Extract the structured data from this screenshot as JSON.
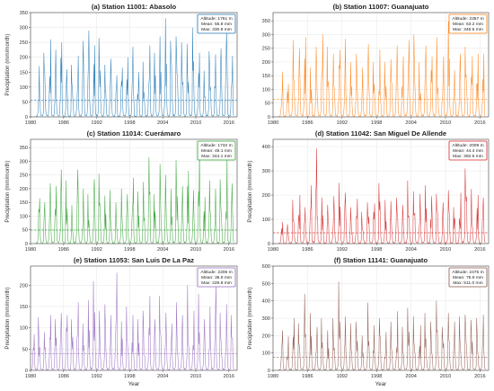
{
  "figure": {
    "xlabel": "Year",
    "ylabel": "Precipitation (mm/month)"
  },
  "chart_data": [
    {
      "type": "line",
      "title": "(a) Station 11001: Abasolo",
      "xlabel": "",
      "ylabel": "Precipitation (mm/month)",
      "color": "#1f77b4",
      "xlim": [
        1980,
        2017.5
      ],
      "ylim": [
        0,
        350
      ],
      "yticks": [
        0,
        50,
        100,
        150,
        200,
        250,
        300,
        350
      ],
      "xticks": [
        1980,
        1986,
        1992,
        1998,
        2004,
        2010,
        2016
      ],
      "x_start": 1981.0,
      "x_end": 2016.95,
      "mean_line": 55.8,
      "annual_peaks": [
        {
          "x": 1981,
          "y": 170
        },
        {
          "x": 1982,
          "y": 215
        },
        {
          "x": 1983,
          "y": 260
        },
        {
          "x": 1984,
          "y": 225
        },
        {
          "x": 1985,
          "y": 250
        },
        {
          "x": 1986,
          "y": 160
        },
        {
          "x": 1987,
          "y": 175
        },
        {
          "x": 1988,
          "y": 205
        },
        {
          "x": 1989,
          "y": 255
        },
        {
          "x": 1990,
          "y": 290
        },
        {
          "x": 1991,
          "y": 240
        },
        {
          "x": 1992,
          "y": 265
        },
        {
          "x": 1993,
          "y": 175
        },
        {
          "x": 1994,
          "y": 195
        },
        {
          "x": 1995,
          "y": 140
        },
        {
          "x": 1996,
          "y": 165
        },
        {
          "x": 1997,
          "y": 200
        },
        {
          "x": 1998,
          "y": 235
        },
        {
          "x": 1999,
          "y": 150
        },
        {
          "x": 2000,
          "y": 185
        },
        {
          "x": 2001,
          "y": 240
        },
        {
          "x": 2002,
          "y": 215
        },
        {
          "x": 2003,
          "y": 270
        },
        {
          "x": 2004,
          "y": 330.8
        },
        {
          "x": 2005,
          "y": 255
        },
        {
          "x": 2006,
          "y": 270
        },
        {
          "x": 2007,
          "y": 250
        },
        {
          "x": 2008,
          "y": 245
        },
        {
          "x": 2009,
          "y": 300
        },
        {
          "x": 2010,
          "y": 215
        },
        {
          "x": 2011,
          "y": 155
        },
        {
          "x": 2012,
          "y": 220
        },
        {
          "x": 2013,
          "y": 210
        },
        {
          "x": 2014,
          "y": 230
        },
        {
          "x": 2015,
          "y": 290
        },
        {
          "x": 2016,
          "y": 205
        }
      ],
      "stats": {
        "altitude": "Altitude: 1761 m",
        "mean": "Mean: 55.8 mm",
        "max": "Max: 330.8 mm"
      }
    },
    {
      "type": "line",
      "title": "(b) Station 11007: Guanajuato",
      "xlabel": "",
      "ylabel": "",
      "color": "#ff7f0e",
      "xlim": [
        1980,
        2017.5
      ],
      "ylim": [
        0,
        380
      ],
      "yticks": [
        0,
        50,
        100,
        150,
        200,
        250,
        300,
        350
      ],
      "xticks": [
        1980,
        1986,
        1992,
        1998,
        2004,
        2010,
        2016
      ],
      "x_start": 1981.0,
      "x_end": 2016.95,
      "mean_line": 63.2,
      "annual_peaks": [
        {
          "x": 1981,
          "y": 165
        },
        {
          "x": 1982,
          "y": 120
        },
        {
          "x": 1983,
          "y": 280
        },
        {
          "x": 1984,
          "y": 250
        },
        {
          "x": 1985,
          "y": 290
        },
        {
          "x": 1986,
          "y": 180
        },
        {
          "x": 1987,
          "y": 255
        },
        {
          "x": 1988,
          "y": 300
        },
        {
          "x": 1989,
          "y": 255
        },
        {
          "x": 1990,
          "y": 230
        },
        {
          "x": 1991,
          "y": 245
        },
        {
          "x": 1992,
          "y": 285
        },
        {
          "x": 1993,
          "y": 200
        },
        {
          "x": 1994,
          "y": 230
        },
        {
          "x": 1995,
          "y": 180
        },
        {
          "x": 1996,
          "y": 265
        },
        {
          "x": 1997,
          "y": 200
        },
        {
          "x": 1998,
          "y": 245
        },
        {
          "x": 1999,
          "y": 200
        },
        {
          "x": 2000,
          "y": 210
        },
        {
          "x": 2001,
          "y": 260
        },
        {
          "x": 2002,
          "y": 220
        },
        {
          "x": 2003,
          "y": 280
        },
        {
          "x": 2004,
          "y": 300
        },
        {
          "x": 2005,
          "y": 200
        },
        {
          "x": 2006,
          "y": 260
        },
        {
          "x": 2007,
          "y": 220
        },
        {
          "x": 2008,
          "y": 290
        },
        {
          "x": 2009,
          "y": 220
        },
        {
          "x": 2010,
          "y": 348.5
        },
        {
          "x": 2011,
          "y": 170
        },
        {
          "x": 2012,
          "y": 230
        },
        {
          "x": 2013,
          "y": 255
        },
        {
          "x": 2014,
          "y": 220
        },
        {
          "x": 2015,
          "y": 230
        },
        {
          "x": 2016,
          "y": 230
        }
      ],
      "stats": {
        "altitude": "Altitude: 2357 m",
        "mean": "Mean: 63.2 mm",
        "max": "Max: 348.5 mm"
      }
    },
    {
      "type": "line",
      "title": "(c) Station 11014: Cuerámaro",
      "xlabel": "",
      "ylabel": "Precipitation (mm/month)",
      "color": "#2ca02c",
      "xlim": [
        1980,
        2017.5
      ],
      "ylim": [
        0,
        380
      ],
      "yticks": [
        0,
        50,
        100,
        150,
        200,
        250,
        300,
        350
      ],
      "xticks": [
        1980,
        1986,
        1992,
        1998,
        2004,
        2010,
        2016
      ],
      "x_start": 1981.0,
      "x_end": 2016.95,
      "mean_line": 49.1,
      "annual_peaks": [
        {
          "x": 1981,
          "y": 165
        },
        {
          "x": 1982,
          "y": 150
        },
        {
          "x": 1983,
          "y": 220
        },
        {
          "x": 1984,
          "y": 210
        },
        {
          "x": 1985,
          "y": 270
        },
        {
          "x": 1986,
          "y": 230
        },
        {
          "x": 1987,
          "y": 140
        },
        {
          "x": 1988,
          "y": 270
        },
        {
          "x": 1989,
          "y": 200
        },
        {
          "x": 1990,
          "y": 180
        },
        {
          "x": 1991,
          "y": 235
        },
        {
          "x": 1992,
          "y": 255
        },
        {
          "x": 1993,
          "y": 175
        },
        {
          "x": 1994,
          "y": 195
        },
        {
          "x": 1995,
          "y": 150
        },
        {
          "x": 1996,
          "y": 200
        },
        {
          "x": 1997,
          "y": 180
        },
        {
          "x": 1998,
          "y": 240
        },
        {
          "x": 1999,
          "y": 190
        },
        {
          "x": 2000,
          "y": 225
        },
        {
          "x": 2001,
          "y": 315
        },
        {
          "x": 2002,
          "y": 180
        },
        {
          "x": 2003,
          "y": 290
        },
        {
          "x": 2004,
          "y": 250
        },
        {
          "x": 2005,
          "y": 200
        },
        {
          "x": 2006,
          "y": 305
        },
        {
          "x": 2007,
          "y": 210
        },
        {
          "x": 2008,
          "y": 265
        },
        {
          "x": 2009,
          "y": 195
        },
        {
          "x": 2010,
          "y": 344.1
        },
        {
          "x": 2011,
          "y": 170
        },
        {
          "x": 2012,
          "y": 230
        },
        {
          "x": 2013,
          "y": 200
        },
        {
          "x": 2014,
          "y": 235
        },
        {
          "x": 2015,
          "y": 315
        },
        {
          "x": 2016,
          "y": 220
        }
      ],
      "stats": {
        "altitude": "Altitude: 1732 m",
        "mean": "Mean: 49.1 mm",
        "max": "Max: 344.1 mm"
      }
    },
    {
      "type": "line",
      "title": "(d) Station 11042: San Miguel De Allende",
      "xlabel": "",
      "ylabel": "Precipitation (mm/month)",
      "color": "#d62728",
      "xlim": [
        1980,
        2017.5
      ],
      "ylim": [
        0,
        430
      ],
      "yticks": [
        0,
        100,
        200,
        300,
        400
      ],
      "xticks": [
        1980,
        1986,
        1992,
        1998,
        2004,
        2010,
        2016
      ],
      "x_start": 1981.0,
      "x_end": 2016.95,
      "mean_line": 44.4,
      "annual_peaks": [
        {
          "x": 1981,
          "y": 90
        },
        {
          "x": 1982,
          "y": 80
        },
        {
          "x": 1983,
          "y": 180
        },
        {
          "x": 1984,
          "y": 200
        },
        {
          "x": 1985,
          "y": 150
        },
        {
          "x": 1986,
          "y": 240
        },
        {
          "x": 1987,
          "y": 392.5
        },
        {
          "x": 1988,
          "y": 190
        },
        {
          "x": 1989,
          "y": 160
        },
        {
          "x": 1990,
          "y": 195
        },
        {
          "x": 1991,
          "y": 250
        },
        {
          "x": 1992,
          "y": 210
        },
        {
          "x": 1993,
          "y": 150
        },
        {
          "x": 1994,
          "y": 185
        },
        {
          "x": 1995,
          "y": 130
        },
        {
          "x": 1996,
          "y": 170
        },
        {
          "x": 1997,
          "y": 165
        },
        {
          "x": 1998,
          "y": 250
        },
        {
          "x": 1999,
          "y": 180
        },
        {
          "x": 2000,
          "y": 175
        },
        {
          "x": 2001,
          "y": 190
        },
        {
          "x": 2002,
          "y": 160
        },
        {
          "x": 2003,
          "y": 260
        },
        {
          "x": 2004,
          "y": 215
        },
        {
          "x": 2005,
          "y": 205
        },
        {
          "x": 2006,
          "y": 240
        },
        {
          "x": 2007,
          "y": 195
        },
        {
          "x": 2008,
          "y": 205
        },
        {
          "x": 2009,
          "y": 170
        },
        {
          "x": 2010,
          "y": 220
        },
        {
          "x": 2011,
          "y": 150
        },
        {
          "x": 2012,
          "y": 210
        },
        {
          "x": 2013,
          "y": 310
        },
        {
          "x": 2014,
          "y": 225
        },
        {
          "x": 2015,
          "y": 200
        },
        {
          "x": 2016,
          "y": 190
        }
      ],
      "stats": {
        "altitude": "Altitude: 2009 m",
        "mean": "Mean: 44.4 mm",
        "max": "Max: 392.5 mm"
      }
    },
    {
      "type": "line",
      "title": "(e) Station 11053: San Luis De La Paz",
      "xlabel": "Year",
      "ylabel": "Precipitation (mm/month)",
      "color": "#9467bd",
      "xlim": [
        1980,
        2017.5
      ],
      "ylim": [
        0,
        245
      ],
      "yticks": [
        0,
        50,
        100,
        150,
        200
      ],
      "xticks": [
        1980,
        1986,
        1992,
        1998,
        2004,
        2010,
        2016
      ],
      "x_start": 1980.0,
      "x_end": 2016.95,
      "mean_line": 38.9,
      "annual_peaks": [
        {
          "x": 1980,
          "y": 85
        },
        {
          "x": 1981,
          "y": 125
        },
        {
          "x": 1982,
          "y": 90
        },
        {
          "x": 1983,
          "y": 130
        },
        {
          "x": 1984,
          "y": 120
        },
        {
          "x": 1985,
          "y": 135
        },
        {
          "x": 1986,
          "y": 130
        },
        {
          "x": 1987,
          "y": 120
        },
        {
          "x": 1988,
          "y": 160
        },
        {
          "x": 1989,
          "y": 110
        },
        {
          "x": 1990,
          "y": 165
        },
        {
          "x": 1991,
          "y": 210
        },
        {
          "x": 1992,
          "y": 140
        },
        {
          "x": 1993,
          "y": 155
        },
        {
          "x": 1994,
          "y": 130
        },
        {
          "x": 1995,
          "y": 229.8
        },
        {
          "x": 1996,
          "y": 115
        },
        {
          "x": 1997,
          "y": 150
        },
        {
          "x": 1998,
          "y": 130
        },
        {
          "x": 1999,
          "y": 120
        },
        {
          "x": 2000,
          "y": 140
        },
        {
          "x": 2001,
          "y": 175
        },
        {
          "x": 2002,
          "y": 120
        },
        {
          "x": 2003,
          "y": 175
        },
        {
          "x": 2004,
          "y": 135
        },
        {
          "x": 2005,
          "y": 110
        },
        {
          "x": 2006,
          "y": 160
        },
        {
          "x": 2007,
          "y": 130
        },
        {
          "x": 2008,
          "y": 200
        },
        {
          "x": 2009,
          "y": 140
        },
        {
          "x": 2010,
          "y": 180
        },
        {
          "x": 2011,
          "y": 120
        },
        {
          "x": 2012,
          "y": 150
        },
        {
          "x": 2013,
          "y": 205
        },
        {
          "x": 2014,
          "y": 135
        },
        {
          "x": 2015,
          "y": 155
        },
        {
          "x": 2016,
          "y": 130
        }
      ],
      "stats": {
        "altitude": "Altitude: 2206 m",
        "mean": "Mean: 38.9 mm",
        "max": "Max: 229.8 mm"
      }
    },
    {
      "type": "line",
      "title": "(f) Station 11141: Guanajuato",
      "xlabel": "Year",
      "ylabel": "Precipitation (mm/month)",
      "color": "#8c564b",
      "xlim": [
        1980,
        2017.5
      ],
      "ylim": [
        0,
        600
      ],
      "yticks": [
        0,
        100,
        200,
        300,
        400,
        500,
        600
      ],
      "xticks": [
        1980,
        1986,
        1992,
        1998,
        2004,
        2010,
        2016
      ],
      "x_start": 1981.0,
      "x_end": 2016.95,
      "mean_line": 75.9,
      "annual_peaks": [
        {
          "x": 1981,
          "y": 230
        },
        {
          "x": 1982,
          "y": 195
        },
        {
          "x": 1983,
          "y": 300
        },
        {
          "x": 1984,
          "y": 270
        },
        {
          "x": 1985,
          "y": 440
        },
        {
          "x": 1986,
          "y": 330
        },
        {
          "x": 1987,
          "y": 250
        },
        {
          "x": 1988,
          "y": 300
        },
        {
          "x": 1989,
          "y": 230
        },
        {
          "x": 1990,
          "y": 300
        },
        {
          "x": 1991,
          "y": 511.0
        },
        {
          "x": 1992,
          "y": 310
        },
        {
          "x": 1993,
          "y": 270
        },
        {
          "x": 1994,
          "y": 280
        },
        {
          "x": 1995,
          "y": 200
        },
        {
          "x": 1996,
          "y": 390
        },
        {
          "x": 1997,
          "y": 260
        },
        {
          "x": 1998,
          "y": 300
        },
        {
          "x": 1999,
          "y": 220
        },
        {
          "x": 2000,
          "y": 280
        },
        {
          "x": 2001,
          "y": 340
        },
        {
          "x": 2002,
          "y": 250
        },
        {
          "x": 2003,
          "y": 360
        },
        {
          "x": 2004,
          "y": 310
        },
        {
          "x": 2005,
          "y": 260
        },
        {
          "x": 2006,
          "y": 330
        },
        {
          "x": 2007,
          "y": 280
        },
        {
          "x": 2008,
          "y": 400
        },
        {
          "x": 2009,
          "y": 250
        },
        {
          "x": 2010,
          "y": 330
        },
        {
          "x": 2011,
          "y": 280
        },
        {
          "x": 2012,
          "y": 310
        },
        {
          "x": 2013,
          "y": 320
        },
        {
          "x": 2014,
          "y": 290
        },
        {
          "x": 2015,
          "y": 300
        },
        {
          "x": 2016,
          "y": 320
        }
      ],
      "stats": {
        "altitude": "Altitude: 2475 m",
        "mean": "Mean: 75.9 mm",
        "max": "Max: 511.0 mm"
      }
    }
  ]
}
